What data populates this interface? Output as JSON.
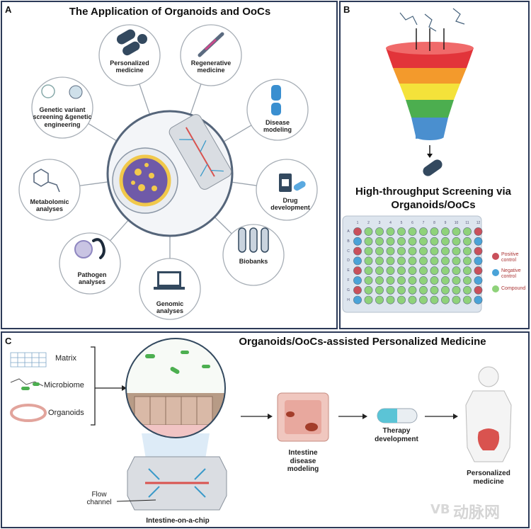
{
  "panel_a": {
    "label": "A",
    "title": "The Application of Organoids and OoCs",
    "nodes": [
      "Personalized medicine",
      "Regenerative medicine",
      "Disease modeling",
      "Drug development",
      "Biobanks",
      "Genomic analyses",
      "Pathogen analyses",
      "Metabolomic analyses",
      "Genetic variant screening &genetic engineering"
    ]
  },
  "panel_b": {
    "label": "B",
    "title": "High-throughput Screening via Organoids/OoCs",
    "plate": {
      "columns": [
        "1",
        "2",
        "3",
        "4",
        "5",
        "6",
        "7",
        "8",
        "9",
        "10",
        "11",
        "12"
      ],
      "rows": [
        "A",
        "B",
        "C",
        "D",
        "E",
        "F",
        "G",
        "H"
      ]
    },
    "legend": [
      "Positive control",
      "Negative control",
      "Compound"
    ]
  },
  "panel_c": {
    "label": "C",
    "title": "Organoids/OoCs-assisted Personalized Medicine",
    "inputs": [
      "Matrix",
      "Microbiome",
      "Organoids"
    ],
    "flow_channel": "Flow channel",
    "chip": "Intestine-on-a-chip",
    "steps": [
      "Intestine disease modeling",
      "Therapy development",
      "Personalized medicine"
    ]
  },
  "watermark": "动脉网"
}
